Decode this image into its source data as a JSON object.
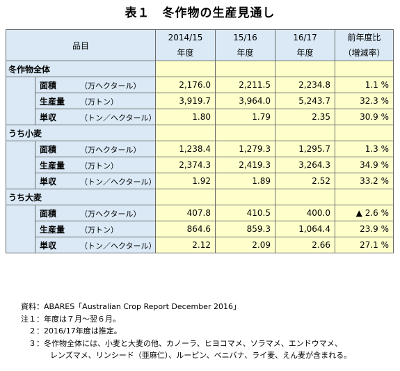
{
  "title": "表１　冬作物の生産見通し",
  "header": {
    "item": "品目",
    "col1": [
      "2014/15",
      "年度"
    ],
    "col2": [
      "15/16",
      "年度"
    ],
    "col3": [
      "16/17",
      "年度"
    ],
    "col4": [
      "前年度比",
      "（増減率）"
    ]
  },
  "sections": [
    {
      "label": "冬作物全体",
      "rows": [
        {
          "name": "面積",
          "unit": "（万ヘクタール）",
          "v1": "2,176.0",
          "v2": "2,211.5",
          "v3": "2,234.8",
          "v4": "1.1 %"
        },
        {
          "name": "生産量",
          "unit": "（万トン）",
          "v1": "3,919.7",
          "v2": "3,964.0",
          "v3": "5,243.7",
          "v4": "32.3 %"
        },
        {
          "name": "単収",
          "unit": "（トン／ヘクタール）",
          "v1": "1.80",
          "v2": "1.79",
          "v3": "2.35",
          "v4": "30.9 %"
        }
      ]
    },
    {
      "label": "うち小麦",
      "rows": [
        {
          "name": "面積",
          "unit": "（万ヘクタール）",
          "v1": "1,238.4",
          "v2": "1,279.3",
          "v3": "1,295.7",
          "v4": "1.3 %"
        },
        {
          "name": "生産量",
          "unit": "（万トン）",
          "v1": "2,374.3",
          "v2": "2,419.3",
          "v3": "3,264.3",
          "v4": "34.9 %"
        },
        {
          "name": "単収",
          "unit": "（トン／ヘクタール）",
          "v1": "1.92",
          "v2": "1.89",
          "v3": "2.52",
          "v4": "33.2 %"
        }
      ]
    },
    {
      "label": "うち大麦",
      "rows": [
        {
          "name": "面積",
          "unit": "（万ヘクタール）",
          "v1": "407.8",
          "v2": "410.5",
          "v3": "400.0",
          "v4": "▲ 2.6 %"
        },
        {
          "name": "生産量",
          "unit": "（万トン）",
          "v1": "864.6",
          "v2": "859.3",
          "v3": "1,064.4",
          "v4": "23.9 %"
        },
        {
          "name": "単収",
          "unit": "（トン／ヘクタール）",
          "v1": "2.12",
          "v2": "2.09",
          "v3": "2.66",
          "v4": "27.1 %"
        }
      ]
    }
  ],
  "notes": {
    "source": "資料：ABARES「Australian Crop Report December 2016」",
    "note1": "注１：年度は７月～翌６月。",
    "note2": "　２：2016/17年度は推定。",
    "note3a": "　３：冬作物全体には、小麦と大麦の他、カノーラ、ヒヨコマメ、ソラマメ、エンドウマメ、",
    "note3b": "レンズマメ、リンシード（亜麻仁）、ルーピン、ベニバナ、ライ麦、えん麦が含まれる。"
  }
}
